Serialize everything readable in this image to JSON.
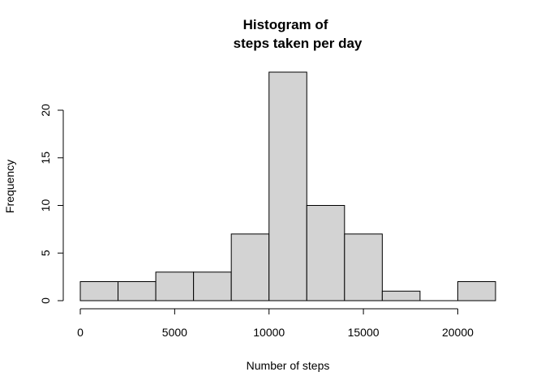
{
  "chart_data": {
    "type": "bar",
    "title_lines": [
      "Histogram of",
      "steps taken per day"
    ],
    "xlabel": "Number of steps",
    "ylabel": "Frequency",
    "bins": [
      {
        "from": 0,
        "to": 2000,
        "count": 2
      },
      {
        "from": 2000,
        "to": 4000,
        "count": 2
      },
      {
        "from": 4000,
        "to": 6000,
        "count": 3
      },
      {
        "from": 6000,
        "to": 8000,
        "count": 3
      },
      {
        "from": 8000,
        "to": 10000,
        "count": 7
      },
      {
        "from": 10000,
        "to": 12000,
        "count": 24
      },
      {
        "from": 12000,
        "to": 14000,
        "count": 10
      },
      {
        "from": 14000,
        "to": 16000,
        "count": 7
      },
      {
        "from": 16000,
        "to": 18000,
        "count": 1
      },
      {
        "from": 18000,
        "to": 20000,
        "count": 0
      },
      {
        "from": 20000,
        "to": 22000,
        "count": 2
      }
    ],
    "xlim": [
      0,
      22000
    ],
    "ylim": [
      0,
      24
    ],
    "x_ticks": [
      0,
      5000,
      10000,
      15000,
      20000
    ],
    "y_ticks": [
      0,
      5,
      10,
      15,
      20
    ],
    "bar_color": "#d3d3d3",
    "grid": false,
    "legend": "none"
  }
}
